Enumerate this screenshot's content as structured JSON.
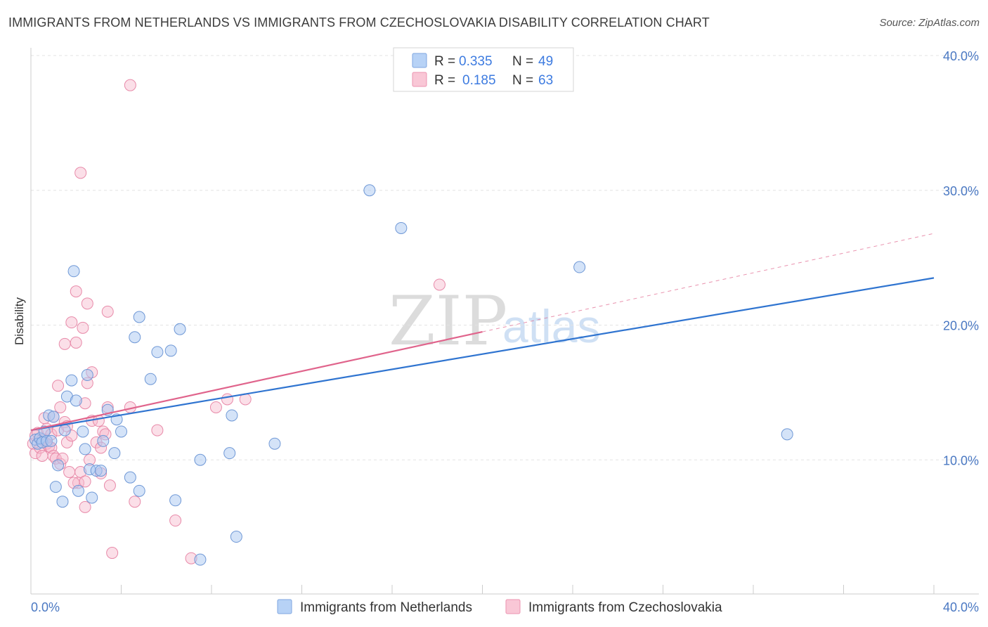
{
  "title": "IMMIGRANTS FROM NETHERLANDS VS IMMIGRANTS FROM CZECHOSLOVAKIA DISABILITY CORRELATION CHART",
  "source": "Source: ZipAtlas.com",
  "watermark": {
    "zip": "ZIP",
    "atlas": "atlas"
  },
  "legend_top": [
    {
      "r_label": "R =",
      "r_value": "0.335",
      "n_label": "N =",
      "n_value": "49"
    },
    {
      "r_label": "R =",
      "r_value": "0.185",
      "n_label": "N =",
      "n_value": "63"
    }
  ],
  "chart_data": {
    "type": "scatter",
    "title": "IMMIGRANTS FROM NETHERLANDS VS IMMIGRANTS FROM CZECHOSLOVAKIA DISABILITY CORRELATION CHART",
    "xlabel": "",
    "ylabel": "Disability",
    "xlim": [
      0,
      40
    ],
    "ylim": [
      0,
      40
    ],
    "x_tick_labels": [
      "0.0%",
      "40.0%"
    ],
    "y_ticks": [
      10,
      20,
      30,
      40
    ],
    "y_tick_labels": [
      "10.0%",
      "20.0%",
      "30.0%",
      "40.0%"
    ],
    "grid": true,
    "colors": {
      "netherlands": "#a9c8f2",
      "netherlands_line": "#2f74d0",
      "czechoslovakia": "#f6b8cc",
      "czechoslovakia_line": "#e0648c"
    },
    "series": [
      {
        "name": "Immigrants from Netherlands",
        "R": 0.335,
        "N": 49,
        "trend": {
          "x": [
            0,
            40
          ],
          "y": [
            12.2,
            23.5
          ]
        },
        "points": [
          [
            0.2,
            11.5
          ],
          [
            0.3,
            11.2
          ],
          [
            0.4,
            11.6
          ],
          [
            0.5,
            11.3
          ],
          [
            0.6,
            12.1
          ],
          [
            0.7,
            11.4
          ],
          [
            0.8,
            13.3
          ],
          [
            0.9,
            11.4
          ],
          [
            1.0,
            13.2
          ],
          [
            1.1,
            8.0
          ],
          [
            1.2,
            9.6
          ],
          [
            1.4,
            6.9
          ],
          [
            1.5,
            12.2
          ],
          [
            1.6,
            14.7
          ],
          [
            1.8,
            15.9
          ],
          [
            1.9,
            24.0
          ],
          [
            2.0,
            14.4
          ],
          [
            2.1,
            7.7
          ],
          [
            2.3,
            12.1
          ],
          [
            2.4,
            10.8
          ],
          [
            2.5,
            16.3
          ],
          [
            2.6,
            9.3
          ],
          [
            2.7,
            7.2
          ],
          [
            2.9,
            9.2
          ],
          [
            3.1,
            9.2
          ],
          [
            3.2,
            11.4
          ],
          [
            3.4,
            13.7
          ],
          [
            3.7,
            10.5
          ],
          [
            3.8,
            13.0
          ],
          [
            4.0,
            12.1
          ],
          [
            4.4,
            8.7
          ],
          [
            4.6,
            19.1
          ],
          [
            4.8,
            7.7
          ],
          [
            4.8,
            20.6
          ],
          [
            5.3,
            16.0
          ],
          [
            5.6,
            18.0
          ],
          [
            6.2,
            18.1
          ],
          [
            6.4,
            7.0
          ],
          [
            6.6,
            19.7
          ],
          [
            7.5,
            2.6
          ],
          [
            7.5,
            10.0
          ],
          [
            8.8,
            10.5
          ],
          [
            8.9,
            13.3
          ],
          [
            9.1,
            4.3
          ],
          [
            10.8,
            11.2
          ],
          [
            15.0,
            30.0
          ],
          [
            16.4,
            27.2
          ],
          [
            24.3,
            24.3
          ],
          [
            33.5,
            11.9
          ]
        ]
      },
      {
        "name": "Immigrants from Czechoslovakia",
        "R": 0.185,
        "N": 63,
        "trend": {
          "x": [
            0,
            20
          ],
          "y": [
            12.2,
            19.5
          ]
        },
        "trend_extension": {
          "x": [
            20,
            40
          ],
          "y": [
            19.5,
            26.8
          ]
        },
        "points": [
          [
            0.1,
            11.2
          ],
          [
            0.2,
            10.5
          ],
          [
            0.2,
            11.8
          ],
          [
            0.3,
            12.0
          ],
          [
            0.4,
            10.9
          ],
          [
            0.5,
            11.5
          ],
          [
            0.5,
            10.3
          ],
          [
            0.6,
            13.1
          ],
          [
            0.7,
            11.2
          ],
          [
            0.7,
            12.3
          ],
          [
            0.8,
            11.0
          ],
          [
            0.9,
            10.9
          ],
          [
            0.9,
            11.9
          ],
          [
            1.0,
            10.3
          ],
          [
            1.0,
            13.2
          ],
          [
            1.1,
            10.1
          ],
          [
            1.2,
            12.2
          ],
          [
            1.2,
            15.5
          ],
          [
            1.3,
            9.7
          ],
          [
            1.3,
            13.9
          ],
          [
            1.4,
            10.1
          ],
          [
            1.5,
            12.8
          ],
          [
            1.5,
            18.6
          ],
          [
            1.6,
            11.3
          ],
          [
            1.6,
            12.5
          ],
          [
            1.7,
            9.1
          ],
          [
            1.8,
            11.8
          ],
          [
            1.8,
            20.2
          ],
          [
            2.0,
            18.7
          ],
          [
            2.0,
            22.5
          ],
          [
            2.1,
            8.3
          ],
          [
            2.2,
            9.1
          ],
          [
            2.2,
            31.3
          ],
          [
            2.3,
            19.8
          ],
          [
            2.4,
            8.4
          ],
          [
            2.4,
            14.2
          ],
          [
            2.5,
            15.7
          ],
          [
            2.5,
            21.6
          ],
          [
            2.6,
            10.0
          ],
          [
            2.7,
            12.9
          ],
          [
            2.7,
            16.5
          ],
          [
            2.9,
            11.3
          ],
          [
            3.0,
            12.9
          ],
          [
            3.1,
            9.0
          ],
          [
            3.1,
            10.9
          ],
          [
            3.2,
            12.1
          ],
          [
            3.3,
            11.9
          ],
          [
            3.4,
            13.9
          ],
          [
            3.4,
            21.0
          ],
          [
            3.5,
            8.1
          ],
          [
            3.6,
            3.1
          ],
          [
            4.4,
            13.9
          ],
          [
            4.4,
            37.8
          ],
          [
            4.6,
            6.9
          ],
          [
            5.6,
            12.2
          ],
          [
            6.4,
            5.5
          ],
          [
            7.1,
            2.7
          ],
          [
            8.2,
            13.9
          ],
          [
            8.7,
            14.5
          ],
          [
            9.5,
            14.5
          ],
          [
            18.1,
            23.0
          ],
          [
            2.4,
            6.5
          ],
          [
            1.9,
            8.3
          ]
        ]
      }
    ]
  },
  "legend_bottom": [
    {
      "label": "Immigrants from Netherlands"
    },
    {
      "label": "Immigrants from Czechoslovakia"
    }
  ]
}
